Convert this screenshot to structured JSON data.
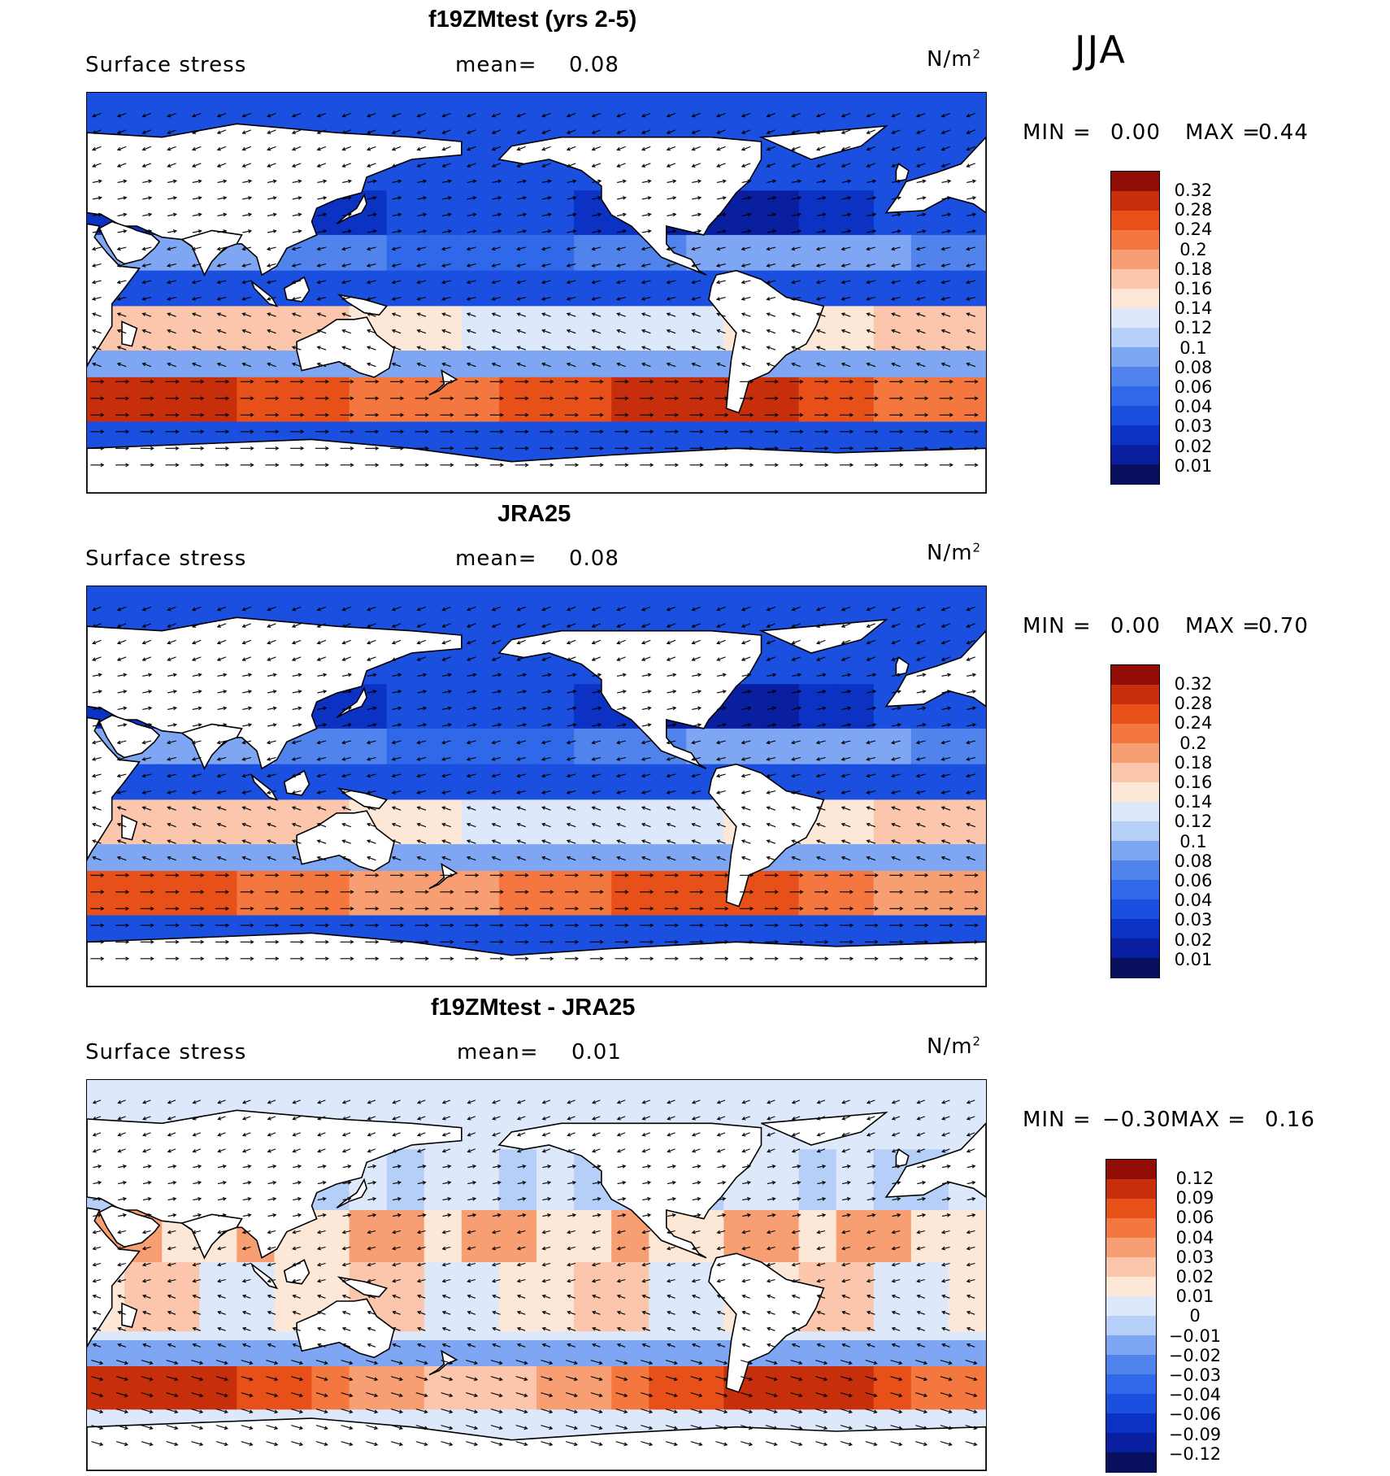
{
  "season": "JJA",
  "palettes": {
    "abs": [
      "#08105e",
      "#0a1ea0",
      "#0c32c4",
      "#1b4fe0",
      "#2f68e8",
      "#5083ec",
      "#7ea6f3",
      "#b6cff8",
      "#dde9fb",
      "#fde8d8",
      "#fbc6ab",
      "#f89e73",
      "#f3773f",
      "#e8501a",
      "#c72e0c",
      "#900d06"
    ],
    "diff": [
      "#08105e",
      "#0a1ea0",
      "#0c32c4",
      "#1b4fe0",
      "#2f68e8",
      "#5083ec",
      "#7ea6f3",
      "#b6cff8",
      "#dde9fb",
      "#fde8d8",
      "#fbc6ab",
      "#f89e73",
      "#f3773f",
      "#e8501a",
      "#c72e0c",
      "#900d06"
    ]
  },
  "chart_data": [
    {
      "type": "heatmap",
      "title": "f19ZMtest (yrs 2-5)",
      "variable": "Surface stress",
      "mean_label": "mean=",
      "mean_value": "0.08",
      "units": "N/m",
      "units_power": "2",
      "min_label": "MIN =",
      "min_value": "0.00",
      "max_label": "MAX =",
      "max_value": "0.44",
      "colorbar_levels": [
        "0.32",
        "0.28",
        "0.24",
        "0.2",
        "0.18",
        "0.16",
        "0.14",
        "0.12",
        "0.1",
        "0.08",
        "0.06",
        "0.04",
        "0.03",
        "0.02",
        "0.01"
      ],
      "vectors": "surface stress direction arrows"
    },
    {
      "type": "heatmap",
      "title": "JRA25",
      "variable": "Surface stress",
      "mean_label": "mean=",
      "mean_value": "0.08",
      "units": "N/m",
      "units_power": "2",
      "min_label": "MIN =",
      "min_value": "0.00",
      "max_label": "MAX =",
      "max_value": "0.70",
      "colorbar_levels": [
        "0.32",
        "0.28",
        "0.24",
        "0.2",
        "0.18",
        "0.16",
        "0.14",
        "0.12",
        "0.1",
        "0.08",
        "0.06",
        "0.04",
        "0.03",
        "0.02",
        "0.01"
      ],
      "vectors": "surface stress direction arrows"
    },
    {
      "type": "heatmap",
      "title": "f19ZMtest - JRA25",
      "variable": "Surface stress",
      "mean_label": "mean=",
      "mean_value": "0.01",
      "units": "N/m",
      "units_power": "2",
      "min_label": "MIN =",
      "min_value": "−0.30",
      "max_label": "MAX =",
      "max_value": "0.16",
      "colorbar_levels": [
        "0.12",
        "0.09",
        "0.06",
        "0.04",
        "0.03",
        "0.02",
        "0.01",
        "0",
        "−0.01",
        "−0.02",
        "−0.03",
        "−0.04",
        "−0.06",
        "−0.09",
        "−0.12"
      ],
      "vectors": "surface stress difference arrows"
    }
  ]
}
